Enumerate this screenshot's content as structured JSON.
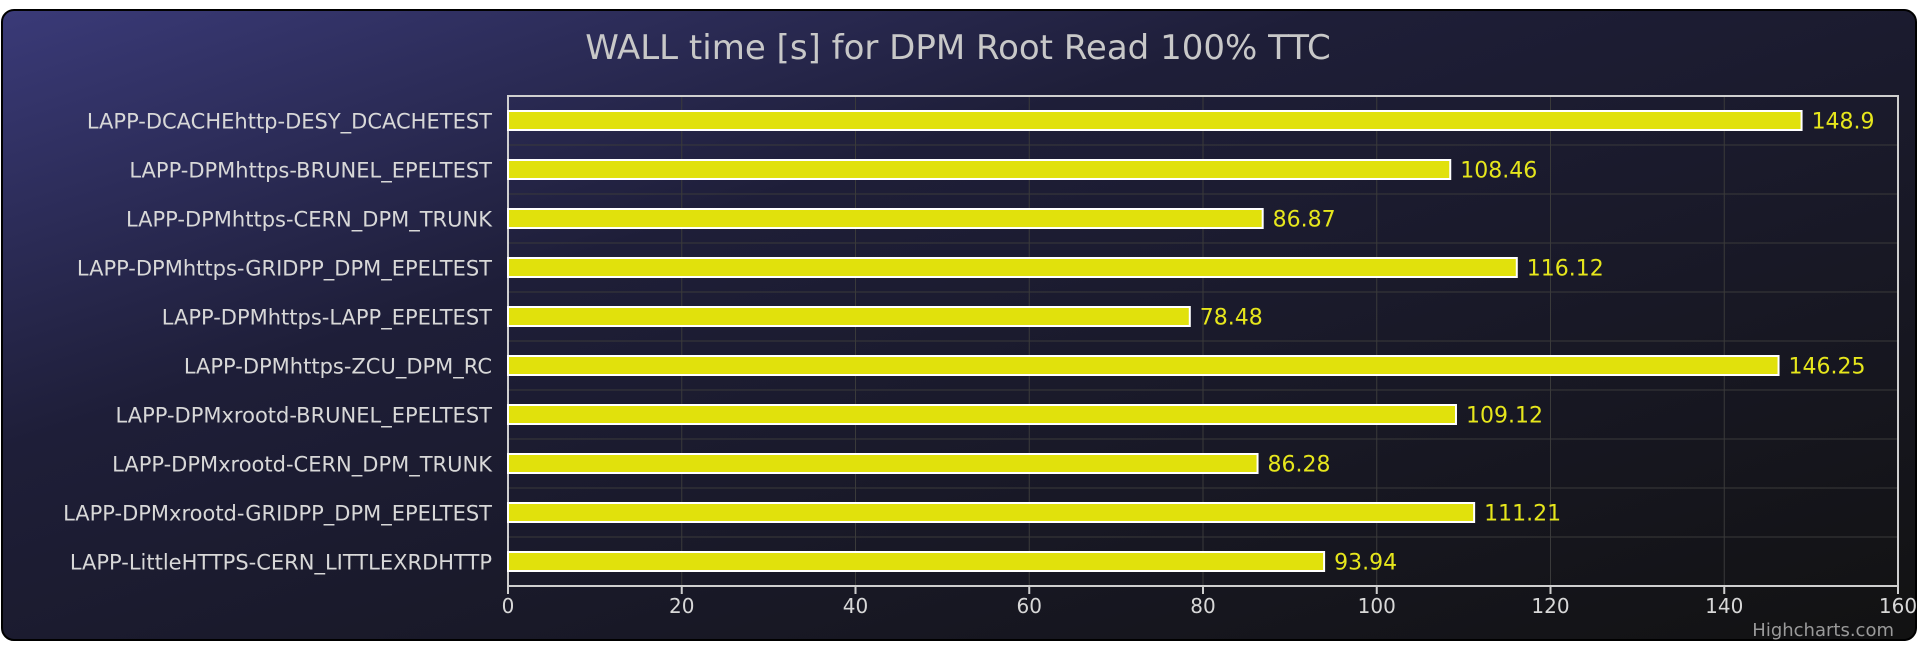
{
  "chart_data": {
    "type": "bar",
    "orientation": "horizontal",
    "title": "WALL time [s] for DPM Root Read 100% TTC",
    "xlabel": "",
    "ylabel": "",
    "categories": [
      "LAPP-DCACHEhttp-DESY_DCACHETEST",
      "LAPP-DPMhttps-BRUNEL_EPELTEST",
      "LAPP-DPMhttps-CERN_DPM_TRUNK",
      "LAPP-DPMhttps-GRIDPP_DPM_EPELTEST",
      "LAPP-DPMhttps-LAPP_EPELTEST",
      "LAPP-DPMhttps-ZCU_DPM_RC",
      "LAPP-DPMxrootd-BRUNEL_EPELTEST",
      "LAPP-DPMxrootd-CERN_DPM_TRUNK",
      "LAPP-DPMxrootd-GRIDPP_DPM_EPELTEST",
      "LAPP-LittleHTTPS-CERN_LITTLEXRDHTTP"
    ],
    "values": [
      148.9,
      108.46,
      86.87,
      116.12,
      78.48,
      146.25,
      109.12,
      86.28,
      111.21,
      93.94
    ],
    "data_labels": [
      "148.9",
      "108.46",
      "86.87",
      "116.12",
      "78.48",
      "146.25",
      "109.12",
      "86.28",
      "111.21",
      "93.94"
    ],
    "xlim": [
      0,
      160
    ],
    "x_ticks": [
      0,
      20,
      40,
      60,
      80,
      100,
      120,
      140,
      160
    ],
    "grid": true,
    "legend": "none",
    "colors": {
      "bar": "#e1e10c",
      "bar_border": "#ffffff",
      "data_label": "#e6e61c",
      "title": "#c8c8c8",
      "axis_text": "#d8d8d8",
      "plot_border": "#cfcfcf",
      "grid": "#3a3a3a",
      "bg_top_left": "#3a3a78",
      "bg_bottom_right": "#151515"
    }
  },
  "credits": "Highcharts.com"
}
